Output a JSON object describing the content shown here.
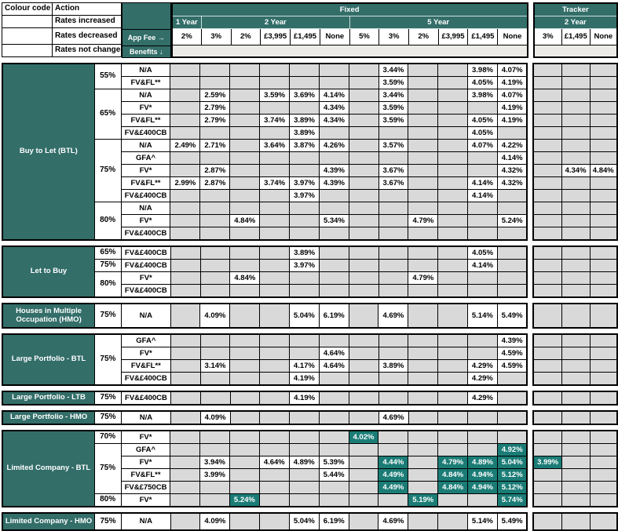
{
  "colors": {
    "header_teal": "#336E69",
    "decreased_teal": "#1B7C76",
    "increased_maroon": "#672B44",
    "empty_cell_gray": "#D9D9D9",
    "benefits_band": "#EDEBE8",
    "border_black": "#000000"
  },
  "legend": {
    "col1_header": "Colour code",
    "col2_header": "Action",
    "rows": [
      {
        "key": "increased",
        "label": "Rates increased"
      },
      {
        "key": "decreased",
        "label": "Rates decreased"
      },
      {
        "key": "unchanged",
        "label": "Rates not changed"
      }
    ]
  },
  "header": {
    "app_fee_label": "App Fee →",
    "benefits_label": "Benefits ↓",
    "fixed_label": "Fixed",
    "tracker_label": "Tracker",
    "fixed_terms": [
      {
        "label": "1 Year",
        "span": 1
      },
      {
        "label": "2 Year",
        "span": 5
      },
      {
        "label": "5 Year",
        "span": 6
      }
    ],
    "tracker_terms": [
      {
        "label": "2 Year",
        "span": 3
      }
    ],
    "fixed_fees": [
      "2%",
      "3%",
      "2%",
      "£3,995",
      "£1,495",
      "None",
      "5%",
      "3%",
      "2%",
      "£3,995",
      "£1,495",
      "None"
    ],
    "tracker_fees": [
      "3%",
      "£1,495",
      "None"
    ]
  },
  "sections": [
    {
      "id": "buy-to-let",
      "label": "Buy to Let (BTL)",
      "groups": [
        {
          "ltv": "55%",
          "rows": [
            {
              "benefit": "N/A",
              "cells": [
                [
                  7,
                  "3.44%"
                ],
                [
                  10,
                  "3.98%"
                ],
                [
                  11,
                  "4.07%"
                ]
              ]
            },
            {
              "benefit": "FV&FL**",
              "cells": [
                [
                  7,
                  "3.59%"
                ],
                [
                  10,
                  "4.05%"
                ],
                [
                  11,
                  "4.19%"
                ]
              ]
            }
          ]
        },
        {
          "ltv": "65%",
          "rows": [
            {
              "benefit": "N/A",
              "cells": [
                [
                  1,
                  "2.59%"
                ],
                [
                  3,
                  "3.59%"
                ],
                [
                  4,
                  "3.69%"
                ],
                [
                  5,
                  "4.14%"
                ],
                [
                  7,
                  "3.44%"
                ],
                [
                  10,
                  "3.98%"
                ],
                [
                  11,
                  "4.07%"
                ]
              ]
            },
            {
              "benefit": "FV*",
              "cells": [
                [
                  1,
                  "2.79%"
                ],
                [
                  5,
                  "4.34%"
                ],
                [
                  7,
                  "3.59%"
                ],
                [
                  11,
                  "4.19%"
                ]
              ]
            },
            {
              "benefit": "FV&FL**",
              "cells": [
                [
                  1,
                  "2.79%"
                ],
                [
                  3,
                  "3.74%"
                ],
                [
                  4,
                  "3.89%"
                ],
                [
                  5,
                  "4.34%"
                ],
                [
                  7,
                  "3.59%"
                ],
                [
                  10,
                  "4.05%"
                ],
                [
                  11,
                  "4.19%"
                ]
              ]
            },
            {
              "benefit": "FV&£400CB",
              "cells": [
                [
                  4,
                  "3.89%"
                ],
                [
                  10,
                  "4.05%"
                ]
              ]
            }
          ]
        },
        {
          "ltv": "75%",
          "rows": [
            {
              "benefit": "N/A",
              "cells": [
                [
                  0,
                  "2.49%"
                ],
                [
                  1,
                  "2.71%"
                ],
                [
                  3,
                  "3.64%"
                ],
                [
                  4,
                  "3.87%"
                ],
                [
                  5,
                  "4.26%"
                ],
                [
                  7,
                  "3.57%"
                ],
                [
                  10,
                  "4.07%"
                ],
                [
                  11,
                  "4.22%"
                ]
              ]
            },
            {
              "benefit": "GFA^",
              "cells": [
                [
                  11,
                  "4.14%"
                ]
              ]
            },
            {
              "benefit": "FV*",
              "cells": [
                [
                  1,
                  "2.87%"
                ],
                [
                  5,
                  "4.39%"
                ],
                [
                  7,
                  "3.67%"
                ],
                [
                  11,
                  "4.32%"
                ],
                [
                  13,
                  "4.34%"
                ],
                [
                  14,
                  "4.84%"
                ]
              ]
            },
            {
              "benefit": "FV&FL**",
              "cells": [
                [
                  0,
                  "2.99%"
                ],
                [
                  1,
                  "2.87%"
                ],
                [
                  3,
                  "3.74%"
                ],
                [
                  4,
                  "3.97%"
                ],
                [
                  5,
                  "4.39%"
                ],
                [
                  7,
                  "3.67%"
                ],
                [
                  10,
                  "4.14%"
                ],
                [
                  11,
                  "4.32%"
                ]
              ]
            },
            {
              "benefit": "FV&£400CB",
              "cells": [
                [
                  4,
                  "3.97%"
                ],
                [
                  10,
                  "4.14%"
                ]
              ]
            }
          ]
        },
        {
          "ltv": "80%",
          "rows": [
            {
              "benefit": "N/A",
              "cells": []
            },
            {
              "benefit": "FV*",
              "cells": [
                [
                  2,
                  "4.84%"
                ],
                [
                  5,
                  "5.34%"
                ],
                [
                  8,
                  "4.79%"
                ],
                [
                  11,
                  "5.24%"
                ]
              ]
            },
            {
              "benefit": "FV&£400CB",
              "cells": []
            }
          ]
        }
      ]
    },
    {
      "id": "let-to-buy",
      "label": "Let to Buy",
      "groups": [
        {
          "ltv": "65%",
          "rows": [
            {
              "benefit": "FV&£400CB",
              "cells": [
                [
                  4,
                  "3.89%"
                ],
                [
                  10,
                  "4.05%"
                ]
              ]
            }
          ]
        },
        {
          "ltv": "75%",
          "rows": [
            {
              "benefit": "FV&£400CB",
              "cells": [
                [
                  4,
                  "3.97%"
                ],
                [
                  10,
                  "4.14%"
                ]
              ]
            }
          ]
        },
        {
          "ltv": "80%",
          "rows": [
            {
              "benefit": "FV*",
              "cells": [
                [
                  2,
                  "4.84%"
                ],
                [
                  8,
                  "4.79%"
                ]
              ]
            },
            {
              "benefit": "FV&£400CB",
              "cells": []
            }
          ]
        }
      ]
    },
    {
      "id": "hmo",
      "label": "Houses in Multiple Occupation (HMO)",
      "tall": true,
      "groups": [
        {
          "ltv": "75%",
          "rows": [
            {
              "benefit": "N/A",
              "cells": [
                [
                  1,
                  "4.09%"
                ],
                [
                  4,
                  "5.04%"
                ],
                [
                  5,
                  "6.19%"
                ],
                [
                  7,
                  "4.69%"
                ],
                [
                  10,
                  "5.14%"
                ],
                [
                  11,
                  "5.49%"
                ]
              ]
            }
          ]
        }
      ]
    },
    {
      "id": "large-portfolio-btl",
      "label": "Large Portfolio - BTL",
      "groups": [
        {
          "ltv": "75%",
          "rows": [
            {
              "benefit": "GFA^",
              "cells": [
                [
                  11,
                  "4.39%"
                ]
              ]
            },
            {
              "benefit": "FV*",
              "cells": [
                [
                  5,
                  "4.64%"
                ],
                [
                  11,
                  "4.59%"
                ]
              ]
            },
            {
              "benefit": "FV&FL**",
              "cells": [
                [
                  1,
                  "3.14%"
                ],
                [
                  4,
                  "4.17%"
                ],
                [
                  5,
                  "4.64%"
                ],
                [
                  7,
                  "3.89%"
                ],
                [
                  10,
                  "4.29%"
                ],
                [
                  11,
                  "4.59%"
                ]
              ]
            },
            {
              "benefit": "FV&£400CB",
              "cells": [
                [
                  4,
                  "4.19%"
                ],
                [
                  10,
                  "4.29%"
                ]
              ]
            }
          ]
        }
      ]
    },
    {
      "id": "large-portfolio-ltb",
      "label": "Large Portfolio - LTB",
      "groups": [
        {
          "ltv": "75%",
          "rows": [
            {
              "benefit": "FV&£400CB",
              "cells": [
                [
                  4,
                  "4.19%"
                ],
                [
                  10,
                  "4.29%"
                ]
              ]
            }
          ]
        }
      ]
    },
    {
      "id": "large-portfolio-hmo",
      "label": "Large Portfolio - HMO",
      "groups": [
        {
          "ltv": "75%",
          "rows": [
            {
              "benefit": "N/A",
              "cells": [
                [
                  1,
                  "4.09%"
                ],
                [
                  7,
                  "4.69%"
                ]
              ]
            }
          ]
        }
      ]
    },
    {
      "id": "limited-company-btl",
      "label": "Limited Company - BTL",
      "groups": [
        {
          "ltv": "70%",
          "rows": [
            {
              "benefit": "FV*",
              "cells": [
                [
                  6,
                  "4.02%",
                  1
                ]
              ]
            }
          ]
        },
        {
          "ltv": "75%",
          "rows": [
            {
              "benefit": "GFA^",
              "cells": [
                [
                  11,
                  "4.92%",
                  1
                ]
              ]
            },
            {
              "benefit": "FV*",
              "cells": [
                [
                  1,
                  "3.94%"
                ],
                [
                  3,
                  "4.64%"
                ],
                [
                  4,
                  "4.89%"
                ],
                [
                  5,
                  "5.39%"
                ],
                [
                  7,
                  "4.44%",
                  1
                ],
                [
                  9,
                  "4.79%",
                  1
                ],
                [
                  10,
                  "4.89%",
                  1
                ],
                [
                  11,
                  "5.04%",
                  1
                ],
                [
                  12,
                  "3.99%",
                  1
                ]
              ]
            },
            {
              "benefit": "FV&FL**",
              "cells": [
                [
                  1,
                  "3.99%"
                ],
                [
                  5,
                  "5.44%"
                ],
                [
                  7,
                  "4.49%",
                  1
                ],
                [
                  9,
                  "4.84%",
                  1
                ],
                [
                  10,
                  "4.94%",
                  1
                ],
                [
                  11,
                  "5.12%",
                  1
                ]
              ]
            },
            {
              "benefit": "FV&£750CB",
              "cells": [
                [
                  7,
                  "4.49%",
                  1
                ],
                [
                  9,
                  "4.84%",
                  1
                ],
                [
                  10,
                  "4.94%",
                  1
                ],
                [
                  11,
                  "5.12%",
                  1
                ]
              ]
            }
          ]
        },
        {
          "ltv": "80%",
          "rows": [
            {
              "benefit": "FV*",
              "cells": [
                [
                  2,
                  "5.24%",
                  1
                ],
                [
                  8,
                  "5.19%",
                  1
                ],
                [
                  11,
                  "5.74%",
                  1
                ]
              ]
            }
          ]
        }
      ]
    },
    {
      "id": "limited-company-hmo",
      "label": "Limited Company - HMO",
      "med": true,
      "groups": [
        {
          "ltv": "75%",
          "rows": [
            {
              "benefit": "N/A",
              "cells": [
                [
                  1,
                  "4.09%"
                ],
                [
                  4,
                  "5.04%"
                ],
                [
                  5,
                  "6.19%"
                ],
                [
                  7,
                  "4.69%"
                ],
                [
                  10,
                  "5.14%"
                ],
                [
                  11,
                  "5.49%"
                ]
              ]
            }
          ]
        }
      ]
    }
  ]
}
